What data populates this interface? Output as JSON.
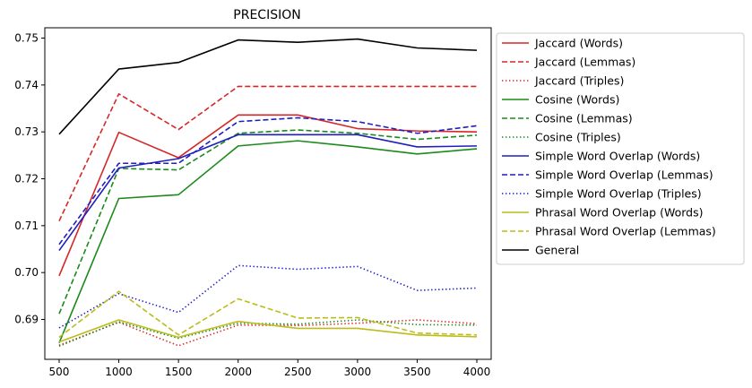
{
  "chart_data": {
    "type": "line",
    "title": "PRECISION",
    "xlabel": "",
    "ylabel": "",
    "x": [
      500,
      1000,
      1500,
      2000,
      2500,
      3000,
      3500,
      4000
    ],
    "xlim": [
      380,
      4120
    ],
    "ylim": [
      0.6815,
      0.7522
    ],
    "xticks": [
      500,
      1000,
      1500,
      2000,
      2500,
      3000,
      3500,
      4000
    ],
    "yticks": [
      0.69,
      0.7,
      0.71,
      0.72,
      0.73,
      0.74,
      0.75
    ],
    "ytick_labels": [
      "0.69",
      "0.70",
      "0.71",
      "0.72",
      "0.73",
      "0.74",
      "0.75"
    ],
    "grid": false,
    "legend_position": "outside-right",
    "series": [
      {
        "name": "Jaccard (Words)",
        "color": "#d62728",
        "dash": "solid",
        "values": [
          0.6993,
          0.7299,
          0.7245,
          0.7336,
          0.7336,
          0.7307,
          0.7302,
          0.73
        ]
      },
      {
        "name": "Jaccard (Lemmas)",
        "color": "#d62728",
        "dash": "dashed",
        "values": [
          0.711,
          0.7381,
          0.7305,
          0.7397,
          0.7397,
          0.7397,
          0.7397,
          0.7397
        ]
      },
      {
        "name": "Jaccard (Triples)",
        "color": "#d62728",
        "dash": "dotted",
        "values": [
          0.6845,
          0.6894,
          0.6844,
          0.6888,
          0.6887,
          0.6892,
          0.6899,
          0.6891
        ]
      },
      {
        "name": "Cosine (Words)",
        "color": "#1a8a1a",
        "dash": "solid",
        "values": [
          0.685,
          0.7158,
          0.7166,
          0.727,
          0.7281,
          0.7268,
          0.7253,
          0.7264
        ]
      },
      {
        "name": "Cosine (Lemmas)",
        "color": "#1a8a1a",
        "dash": "dashed",
        "values": [
          0.6912,
          0.7222,
          0.7219,
          0.7297,
          0.7304,
          0.7297,
          0.7284,
          0.7293
        ]
      },
      {
        "name": "Cosine (Triples)",
        "color": "#1a8a1a",
        "dash": "dotted",
        "values": [
          0.6843,
          0.6895,
          0.686,
          0.6892,
          0.689,
          0.6899,
          0.6889,
          0.6888
        ]
      },
      {
        "name": "Simple Word Overlap (Words)",
        "color": "#1f1fbf",
        "dash": "solid",
        "values": [
          0.7047,
          0.7223,
          0.7243,
          0.7294,
          0.7294,
          0.7294,
          0.7268,
          0.727
        ]
      },
      {
        "name": "Simple Word Overlap (Lemmas)",
        "color": "#1f1fbf",
        "dash": "dashed",
        "values": [
          0.706,
          0.7233,
          0.7233,
          0.7322,
          0.733,
          0.7322,
          0.7297,
          0.7313
        ]
      },
      {
        "name": "Simple Word Overlap (Triples)",
        "color": "#1f1fbf",
        "dash": "dotted",
        "values": [
          0.6882,
          0.6955,
          0.6915,
          0.7015,
          0.7007,
          0.7013,
          0.6962,
          0.6967
        ]
      },
      {
        "name": "Phrasal Word Overlap (Words)",
        "color": "#bcbc1a",
        "dash": "solid",
        "values": [
          0.6852,
          0.6899,
          0.6862,
          0.6896,
          0.6881,
          0.6881,
          0.6867,
          0.6863
        ]
      },
      {
        "name": "Phrasal Word Overlap (Lemmas)",
        "color": "#bcbc1a",
        "dash": "dashed",
        "values": [
          0.6862,
          0.696,
          0.6867,
          0.6944,
          0.6903,
          0.6904,
          0.6871,
          0.6867
        ]
      },
      {
        "name": "General",
        "color": "#000000",
        "dash": "solid",
        "values": [
          0.7295,
          0.7434,
          0.7448,
          0.7496,
          0.7491,
          0.7498,
          0.7479,
          0.7474
        ]
      }
    ]
  }
}
